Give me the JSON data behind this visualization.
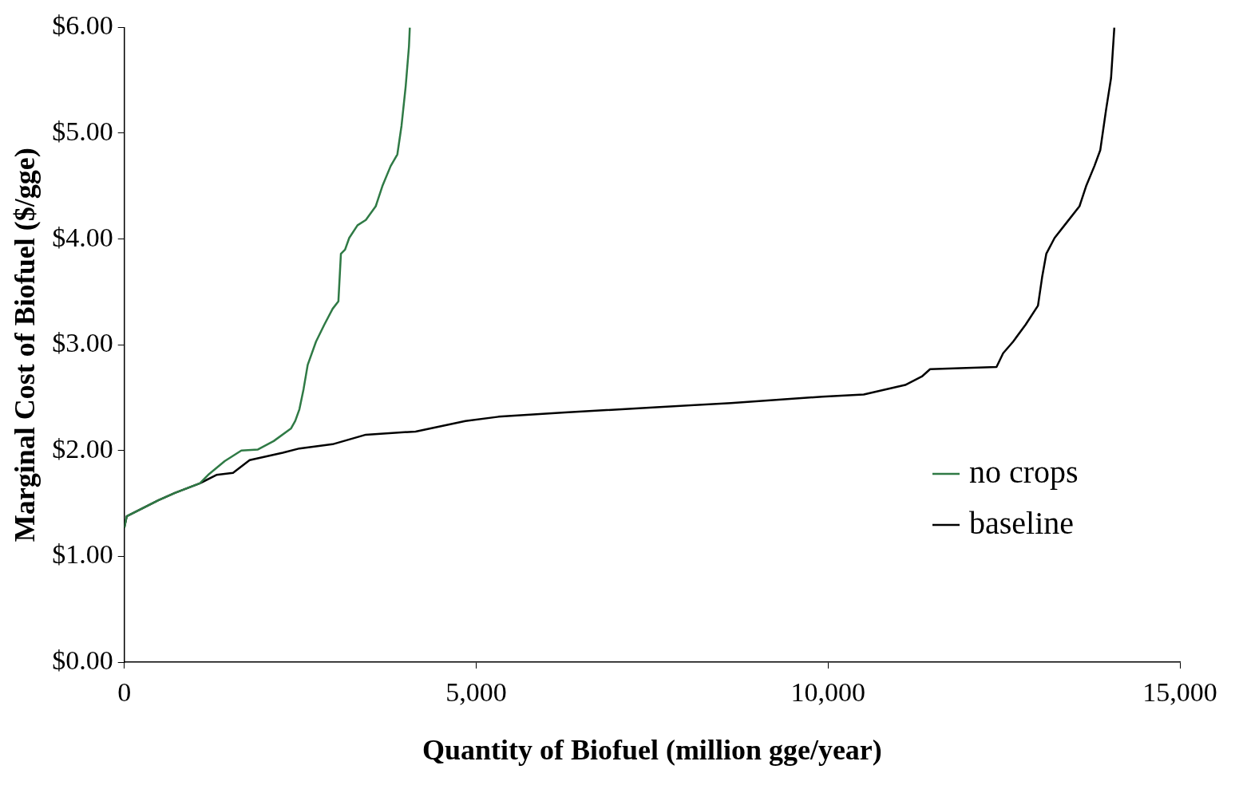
{
  "chart_data": {
    "type": "line",
    "xlabel": "Quantity of Biofuel (million gge/year)",
    "ylabel": "Marginal Cost of Biofuel ($/gge)",
    "xlim": [
      0,
      15000
    ],
    "xticks": [
      0,
      {
        "value": 5000,
        "label": "5,000"
      },
      {
        "value": 10000,
        "label": "10,000"
      },
      {
        "value": 15000,
        "label": "15,000"
      }
    ],
    "ylim": [
      0,
      6
    ],
    "yticks": [
      {
        "value": 0,
        "label": "$0.00"
      },
      {
        "value": 1,
        "label": "$1.00"
      },
      {
        "value": 2,
        "label": "$2.00"
      },
      {
        "value": 3,
        "label": "$3.00"
      },
      {
        "value": 4,
        "label": "$4.00"
      },
      {
        "value": 5,
        "label": "$5.00"
      },
      {
        "value": 6,
        "label": "$6.00"
      }
    ],
    "legend": "bottom right",
    "series": [
      {
        "name": "no crops",
        "color": "#2f7a45",
        "x": [
          0,
          35,
          248,
          483,
          719,
          1073,
          1191,
          1427,
          1663,
          1899,
          2123,
          2370,
          2429,
          2488,
          2547,
          2606,
          2724,
          2842,
          2960,
          3042,
          3078,
          3137,
          3196,
          3314,
          3432,
          3573,
          3667,
          3785,
          3880,
          3939,
          3998,
          4045,
          4057
        ],
        "values": [
          1.27,
          1.38,
          1.45,
          1.53,
          1.6,
          1.69,
          1.77,
          1.9,
          2.0,
          2.01,
          2.09,
          2.21,
          2.28,
          2.39,
          2.58,
          2.81,
          3.03,
          3.19,
          3.34,
          3.41,
          3.86,
          3.9,
          4.01,
          4.13,
          4.18,
          4.31,
          4.5,
          4.69,
          4.8,
          5.07,
          5.44,
          5.82,
          6.0
        ]
      },
      {
        "name": "baseline",
        "color": "#000000",
        "x": [
          0,
          35,
          248,
          483,
          719,
          1073,
          1309,
          1545,
          1781,
          2252,
          2488,
          2960,
          3432,
          4139,
          4847,
          5318,
          6262,
          7559,
          8620,
          9917,
          10507,
          11097,
          11333,
          11450,
          12394,
          12488,
          12630,
          12807,
          12983,
          13042,
          13101,
          13219,
          13396,
          13573,
          13667,
          13785,
          13868,
          13950,
          14021,
          14068
        ],
        "values": [
          1.27,
          1.38,
          1.45,
          1.53,
          1.6,
          1.69,
          1.77,
          1.79,
          1.91,
          1.98,
          2.02,
          2.06,
          2.15,
          2.18,
          2.28,
          2.32,
          2.36,
          2.41,
          2.45,
          2.51,
          2.53,
          2.62,
          2.7,
          2.77,
          2.79,
          2.92,
          3.03,
          3.19,
          3.37,
          3.64,
          3.86,
          4.01,
          4.16,
          4.31,
          4.5,
          4.69,
          4.84,
          5.22,
          5.52,
          6.0
        ]
      }
    ]
  }
}
